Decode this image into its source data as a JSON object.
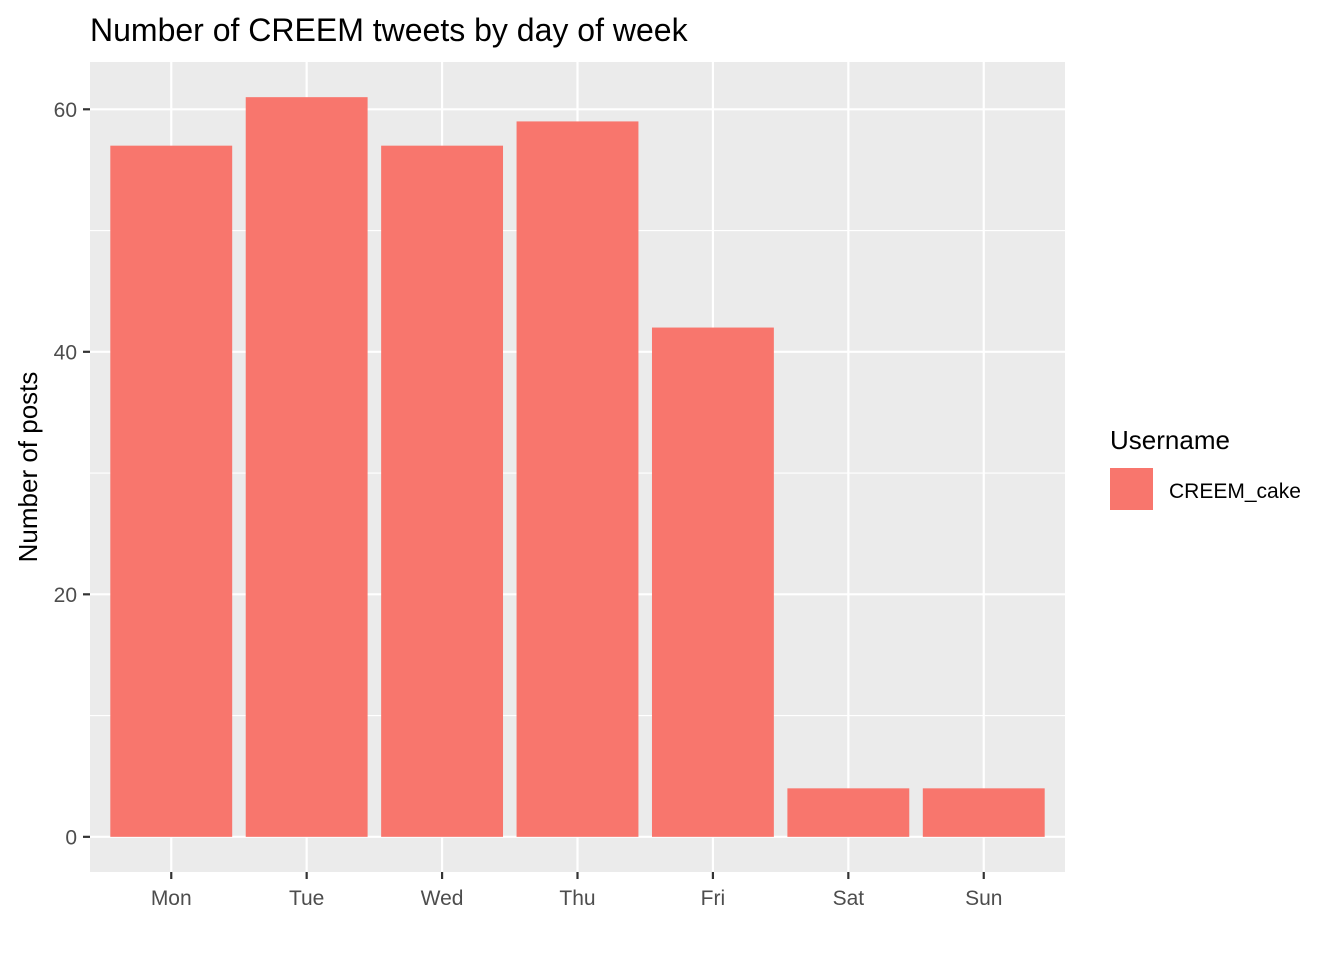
{
  "chart_data": {
    "type": "bar",
    "title": "Number of CREEM tweets by day of week",
    "xlabel": "",
    "ylabel": "Number of posts",
    "categories": [
      "Mon",
      "Tue",
      "Wed",
      "Thu",
      "Fri",
      "Sat",
      "Sun"
    ],
    "series": [
      {
        "name": "CREEM_cake",
        "values": [
          57,
          61,
          57,
          59,
          42,
          4,
          4
        ],
        "color": "#F8766D"
      }
    ],
    "ylim": [
      -2.9,
      63.9
    ],
    "yticks": [
      0,
      20,
      40,
      60
    ],
    "ytick_labels": [
      "0",
      "20",
      "40",
      "60"
    ],
    "y_minor_ticks": [
      10,
      30,
      50
    ],
    "grid": true,
    "panel_background": "#EBEBEB",
    "gridline_color": "#FFFFFF",
    "legend": {
      "title": "Username",
      "placement": "right",
      "entries": [
        "CREEM_cake"
      ]
    }
  }
}
